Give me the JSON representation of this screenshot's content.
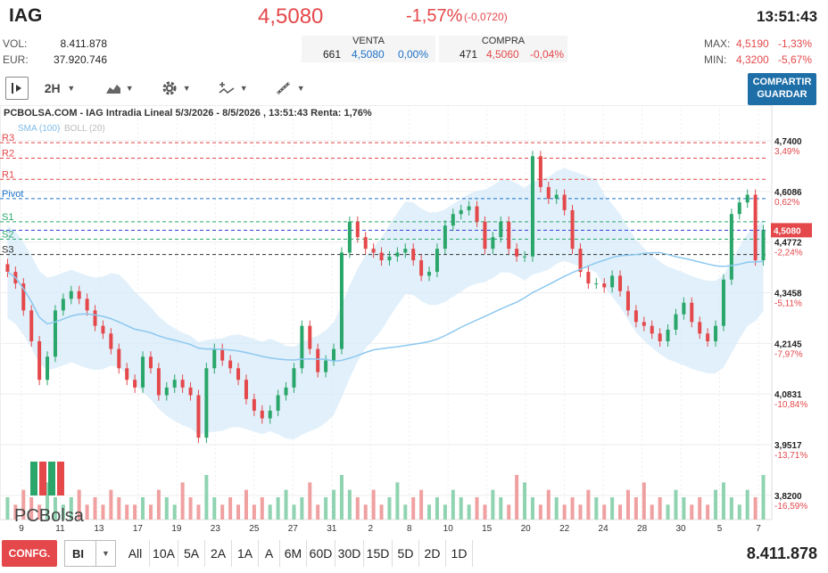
{
  "header": {
    "ticker": "IAG",
    "last": "4,5080",
    "change_pct": "-1,57%",
    "change_abs": "(-0,0720)",
    "time": "13:51:43"
  },
  "stats": {
    "vol_label": "VOL:",
    "vol": "8.411.878",
    "eur_label": "EUR:",
    "eur": "37.920.746",
    "max_label": "MAX:",
    "max": "4,5190",
    "max_pct": "-1,33%",
    "min_label": "MIN:",
    "min": "4,3200",
    "min_pct": "-5,67%"
  },
  "orderbook": {
    "sell_label": "VENTA",
    "sell_qty": "661",
    "sell_price": "4,5080",
    "sell_pct": "0,00%",
    "buy_label": "COMPRA",
    "buy_qty": "471",
    "buy_price": "4,5060",
    "buy_pct": "-0,04%"
  },
  "toolbar": {
    "interval": "2H",
    "share_label_1": "COMPARTIR",
    "share_label_2": "GUARDAR"
  },
  "chart_data": {
    "type": "candlestick",
    "title": "PCBOLSA.COM - IAG Intradia Lineal 5/3/2026 - 8/5/2026 , 13:51:43 Renta: 1,76%",
    "legend": [
      "SMA (100)",
      "BOLL (20)"
    ],
    "watermark": "PCBolsa",
    "x_ticks": [
      "9",
      "11",
      "13",
      "17",
      "19",
      "23",
      "25",
      "27",
      "31",
      "2",
      "8",
      "10",
      "15",
      "20",
      "22",
      "24",
      "28",
      "30",
      "5",
      "7"
    ],
    "y_ticks": [
      {
        "v": 4.74,
        "label": "4,7400",
        "pct": "3,49%"
      },
      {
        "v": 4.6086,
        "label": "4,6086",
        "pct": "0,62%"
      },
      {
        "v": 4.4772,
        "label": "4,4772",
        "pct": "-2,24%"
      },
      {
        "v": 4.3458,
        "label": "4,3458",
        "pct": "-5,11%"
      },
      {
        "v": 4.2145,
        "label": "4,2145",
        "pct": "-7,97%"
      },
      {
        "v": 4.0831,
        "label": "4,0831",
        "pct": "-10,84%"
      },
      {
        "v": 3.9517,
        "label": "3,9517",
        "pct": "-13,71%"
      },
      {
        "v": 3.82,
        "label": "3,8200",
        "pct": "-16,59%"
      }
    ],
    "ylim": [
      3.82,
      4.74
    ],
    "current_price": {
      "v": 4.508,
      "label": "4,5080"
    },
    "pivots": [
      {
        "name": "R3",
        "v": 4.735,
        "color": "#e4484b"
      },
      {
        "name": "R2",
        "v": 4.695,
        "color": "#e4484b"
      },
      {
        "name": "R1",
        "v": 4.64,
        "color": "#e4484b"
      },
      {
        "name": "Pivot",
        "v": 4.59,
        "color": "#1d72c8"
      },
      {
        "name": "S1",
        "v": 4.53,
        "color": "#2aa66a"
      },
      {
        "name": "S2",
        "v": 4.485,
        "color": "#2aa66a"
      },
      {
        "name": "S3",
        "v": 4.445,
        "color": "#333"
      }
    ],
    "close": [
      4.4,
      4.37,
      4.3,
      4.22,
      4.12,
      4.18,
      4.3,
      4.33,
      4.35,
      4.33,
      4.3,
      4.26,
      4.24,
      4.2,
      4.15,
      4.12,
      4.1,
      4.18,
      4.15,
      4.08,
      4.1,
      4.12,
      4.1,
      4.08,
      3.97,
      4.15,
      4.2,
      4.17,
      4.15,
      4.12,
      4.07,
      4.04,
      4.02,
      4.04,
      4.08,
      4.1,
      4.15,
      4.26,
      4.2,
      4.14,
      4.17,
      4.2,
      4.45,
      4.53,
      4.49,
      4.46,
      4.45,
      4.43,
      4.44,
      4.45,
      4.46,
      4.43,
      4.39,
      4.4,
      4.46,
      4.52,
      4.55,
      4.56,
      4.57,
      4.53,
      4.46,
      4.49,
      4.53,
      4.46,
      4.44,
      4.44,
      4.7,
      4.62,
      4.59,
      4.6,
      4.56,
      4.46,
      4.4,
      4.37,
      4.37,
      4.36,
      4.39,
      4.35,
      4.3,
      4.27,
      4.26,
      4.24,
      4.22,
      4.25,
      4.29,
      4.32,
      4.27,
      4.24,
      4.22,
      4.26,
      4.38,
      4.55,
      4.58,
      4.6,
      4.43,
      4.508
    ],
    "volume": [
      3,
      2,
      4,
      3,
      2,
      5,
      3,
      2,
      3,
      4,
      2,
      3,
      2,
      4,
      3,
      2,
      2,
      3,
      2,
      4,
      3,
      2,
      5,
      3,
      2,
      6,
      3,
      2,
      3,
      2,
      4,
      2,
      3,
      2,
      3,
      4,
      2,
      3,
      5,
      2,
      3,
      4,
      6,
      4,
      3,
      2,
      4,
      2,
      3,
      5,
      2,
      3,
      4,
      2,
      3,
      2,
      4,
      3,
      2,
      3,
      2,
      4,
      3,
      2,
      6,
      5,
      3,
      2,
      4,
      3,
      2,
      3,
      2,
      4,
      3,
      2,
      3,
      2,
      4,
      3,
      5,
      2,
      3,
      2,
      4,
      3,
      2,
      3,
      2,
      4,
      5,
      3,
      2,
      4,
      3,
      6
    ]
  },
  "bottom": {
    "config": "CONFG.",
    "type": "BI",
    "periods": [
      "All",
      "10A",
      "5A",
      "2A",
      "1A",
      "A",
      "6M",
      "60D",
      "30D",
      "15D",
      "5D",
      "2D",
      "1D"
    ],
    "total_volume": "8.411.878"
  }
}
